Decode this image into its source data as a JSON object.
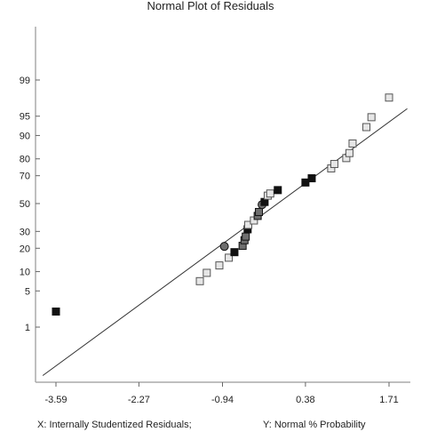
{
  "chart_data": {
    "type": "scatter",
    "title": "Normal Plot of Residuals",
    "xlabel": "X: Internally Studentized Residuals;",
    "ylabel": "Y: Normal % Probability",
    "x_ticks": [
      "-3.59",
      "-2.27",
      "-0.94",
      "0.38",
      "1.71"
    ],
    "x_tick_values": [
      -3.59,
      -2.27,
      -0.94,
      0.38,
      1.71
    ],
    "y_ticks": [
      "1",
      "5",
      "10",
      "20",
      "30",
      "50",
      "70",
      "80",
      "90",
      "95",
      "99"
    ],
    "y_tick_values": [
      1,
      5,
      10,
      20,
      30,
      50,
      70,
      80,
      90,
      95,
      99
    ],
    "y_scale": "normal-probability",
    "xlim": [
      -3.9,
      1.95
    ],
    "reference_line": {
      "x": [
        -3.8,
        2.0
      ],
      "y": [
        0.06,
        96.3
      ]
    },
    "marker_colors": {
      "dark": "#111111",
      "mid": "#6e6e6e",
      "light": "#e6e6e6"
    },
    "points": [
      {
        "x": -3.59,
        "y": 2.1,
        "shape": "square",
        "fill": "dark"
      },
      {
        "x": -1.3,
        "y": 7.2,
        "shape": "square",
        "fill": "light"
      },
      {
        "x": -1.19,
        "y": 9.6,
        "shape": "square",
        "fill": "light"
      },
      {
        "x": -0.99,
        "y": 12.2,
        "shape": "square",
        "fill": "light"
      },
      {
        "x": -0.91,
        "y": 21.0,
        "shape": "circle",
        "fill": "mid"
      },
      {
        "x": -0.84,
        "y": 15.4,
        "shape": "square",
        "fill": "light"
      },
      {
        "x": -0.75,
        "y": 18.0,
        "shape": "square",
        "fill": "dark"
      },
      {
        "x": -0.62,
        "y": 21.3,
        "shape": "square",
        "fill": "mid"
      },
      {
        "x": -0.59,
        "y": 24.5,
        "shape": "square",
        "fill": "mid"
      },
      {
        "x": -0.57,
        "y": 26.7,
        "shape": "square",
        "fill": "mid"
      },
      {
        "x": -0.54,
        "y": 31.4,
        "shape": "square",
        "fill": "dark"
      },
      {
        "x": -0.53,
        "y": 34.4,
        "shape": "square",
        "fill": "light"
      },
      {
        "x": -0.44,
        "y": 37.5,
        "shape": "square",
        "fill": "light"
      },
      {
        "x": -0.38,
        "y": 40.8,
        "shape": "square",
        "fill": "mid"
      },
      {
        "x": -0.36,
        "y": 43.7,
        "shape": "square",
        "fill": "mid"
      },
      {
        "x": -0.31,
        "y": 49.2,
        "shape": "circle",
        "fill": "mid"
      },
      {
        "x": -0.27,
        "y": 51.2,
        "shape": "square",
        "fill": "dark"
      },
      {
        "x": -0.22,
        "y": 55.9,
        "shape": "square",
        "fill": "light"
      },
      {
        "x": -0.18,
        "y": 57.5,
        "shape": "square",
        "fill": "light"
      },
      {
        "x": -0.06,
        "y": 60.0,
        "shape": "square",
        "fill": "dark"
      },
      {
        "x": 0.38,
        "y": 65.4,
        "shape": "square",
        "fill": "dark"
      },
      {
        "x": 0.48,
        "y": 68.3,
        "shape": "square",
        "fill": "dark"
      },
      {
        "x": 0.79,
        "y": 74.6,
        "shape": "square",
        "fill": "light"
      },
      {
        "x": 0.84,
        "y": 77.2,
        "shape": "square",
        "fill": "light"
      },
      {
        "x": 1.03,
        "y": 80.4,
        "shape": "square",
        "fill": "light"
      },
      {
        "x": 1.08,
        "y": 82.9,
        "shape": "square",
        "fill": "light"
      },
      {
        "x": 1.13,
        "y": 87.1,
        "shape": "square",
        "fill": "light"
      },
      {
        "x": 1.35,
        "y": 92.5,
        "shape": "square",
        "fill": "light"
      },
      {
        "x": 1.43,
        "y": 94.8,
        "shape": "square",
        "fill": "light"
      },
      {
        "x": 1.71,
        "y": 97.7,
        "shape": "square",
        "fill": "light"
      }
    ]
  }
}
